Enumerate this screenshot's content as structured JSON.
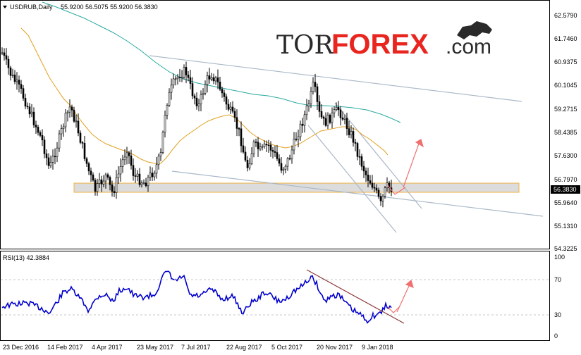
{
  "main_panel": {
    "symbol_label": "USDRUB,Daily",
    "ohlc_label": "55.9200 56.5075 55.9200 56.3830",
    "current_price": "56.3830",
    "price_ticks": [
      "62.5790",
      "61.7460",
      "60.9375",
      "60.1045",
      "59.2715",
      "58.4385",
      "57.6300",
      "56.7970",
      "55.9640",
      "55.1310",
      "54.3225"
    ]
  },
  "rsi_panel": {
    "label": "RSI(13) 42.3884",
    "levels": [
      "100",
      "70",
      "30",
      "0"
    ]
  },
  "x_axis": {
    "dates": [
      "23 Dec 2016",
      "14 Feb 2017",
      "4 Apr 2017",
      "23 May 2017",
      "7 Jul 2017",
      "22 Aug 2017",
      "5 Oct 2017",
      "20 Nov 2017",
      "9 Jan 2018"
    ]
  },
  "logo": {
    "part1": "TOR",
    "part2": "FOREX",
    "part3": ".com"
  },
  "colors": {
    "candle": "#000000",
    "ma_short": "#e0a020",
    "ma_long": "#2aaaa0",
    "trendline": "#aab8c8",
    "rsi": "#0000cc",
    "rsi_trend": "#8b3a3a",
    "arrow": "#f07070",
    "support_fill": "#dcdcdc",
    "support_border": "#f0b040",
    "price_tag": "#000000"
  }
}
